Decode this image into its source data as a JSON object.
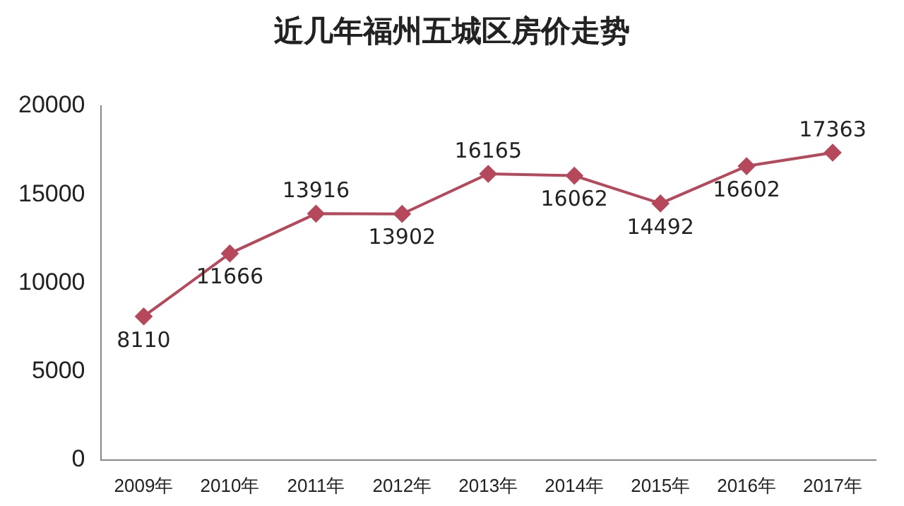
{
  "chart_data": {
    "type": "line",
    "title": "近几年福州五城区房价走势",
    "categories": [
      "2009年",
      "2010年",
      "2011年",
      "2012年",
      "2013年",
      "2014年",
      "2015年",
      "2016年",
      "2017年"
    ],
    "values": [
      8110,
      11666,
      13916,
      13902,
      16165,
      16062,
      14492,
      16602,
      17363
    ],
    "color": "#b5485a",
    "ylim": [
      0,
      20000
    ],
    "yticks": [
      0,
      5000,
      10000,
      15000,
      20000
    ],
    "grid": false,
    "legend": false,
    "marker": "diamond",
    "line_style": "solid",
    "data_labels": true
  }
}
